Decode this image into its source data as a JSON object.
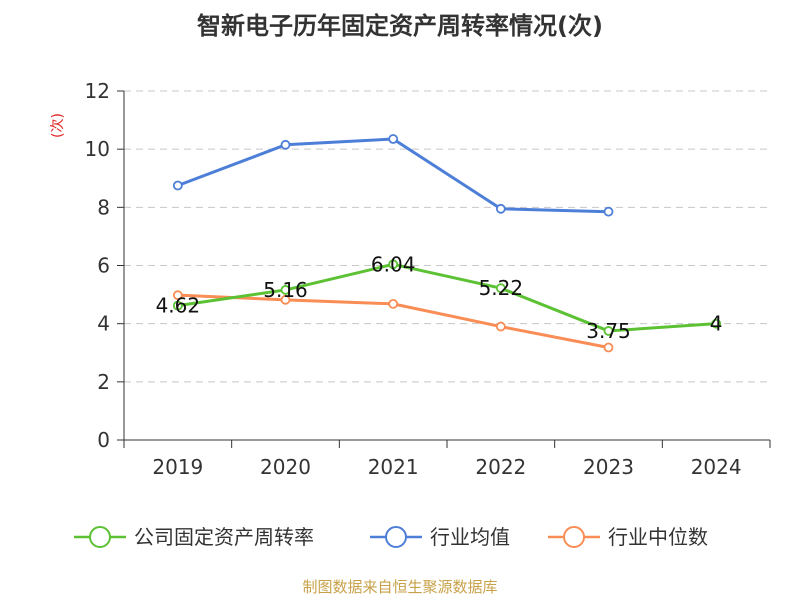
{
  "chart_data": {
    "type": "line",
    "title": "智新电子历年固定资产周转率情况(次)",
    "ylabel": "(次)",
    "categories": [
      "2019",
      "2020",
      "2021",
      "2022",
      "2023",
      "2024"
    ],
    "ylim": [
      0,
      12
    ],
    "yticks": [
      0,
      2,
      4,
      6,
      8,
      10,
      12
    ],
    "grid": true,
    "legend_position": "bottom",
    "series": [
      {
        "name": "公司固定资产周转率",
        "color": "#5cc234",
        "values": [
          4.62,
          5.16,
          6.04,
          5.22,
          3.75,
          4
        ],
        "labels": [
          "4.62",
          "5.16",
          "6.04",
          "5.22",
          "3.75",
          "4"
        ]
      },
      {
        "name": "行业均值",
        "color": "#4d7fd8",
        "values": [
          8.75,
          10.15,
          10.35,
          7.95,
          7.85,
          null
        ]
      },
      {
        "name": "行业中位数",
        "color": "#f98d55",
        "values": [
          4.98,
          4.82,
          4.68,
          3.9,
          3.18,
          null
        ]
      }
    ],
    "source": "制图数据来自恒生聚源数据库"
  }
}
